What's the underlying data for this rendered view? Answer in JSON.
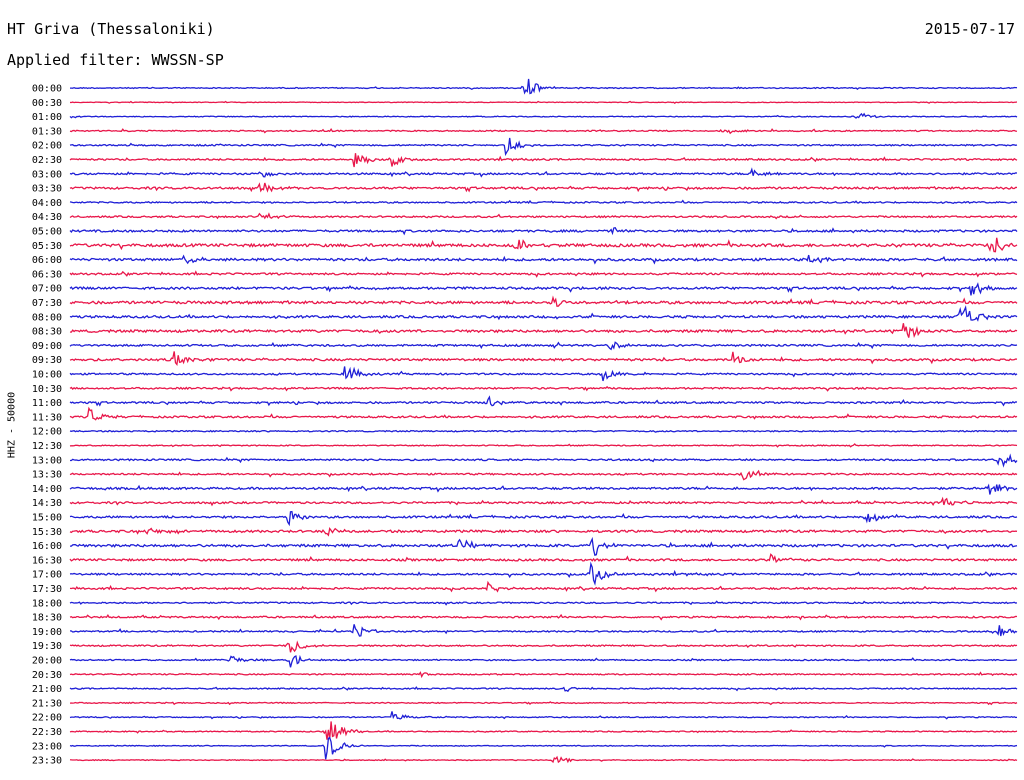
{
  "header": {
    "station": "HT Griva (Thessaloniki)",
    "date": "2015-07-17",
    "filter": "Applied filter: WWSSN-SP"
  },
  "chart_data": {
    "type": "line",
    "subtype": "helicorder",
    "ylabel": "HHZ - 50000",
    "row_interval_minutes": 30,
    "row_colors": [
      "#1f1fd6",
      "#e8174a"
    ],
    "rows": [
      "00:00",
      "00:30",
      "01:00",
      "01:30",
      "02:00",
      "02:30",
      "03:00",
      "03:30",
      "04:00",
      "04:30",
      "05:00",
      "05:30",
      "06:00",
      "06:30",
      "07:00",
      "07:30",
      "08:00",
      "08:30",
      "09:00",
      "09:30",
      "10:00",
      "10:30",
      "11:00",
      "11:30",
      "12:00",
      "12:30",
      "13:00",
      "13:30",
      "14:00",
      "14:30",
      "15:00",
      "15:30",
      "16:00",
      "16:30",
      "17:00",
      "17:30",
      "18:00",
      "18:30",
      "19:00",
      "19:30",
      "20:00",
      "20:30",
      "21:00",
      "21:30",
      "22:00",
      "22:30",
      "23:00",
      "23:30"
    ],
    "noise_levels": [
      0.5,
      0.3,
      0.4,
      0.6,
      0.7,
      0.8,
      0.9,
      1.0,
      0.7,
      0.8,
      1.0,
      1.4,
      1.2,
      0.9,
      1.1,
      1.3,
      1.1,
      1.2,
      0.9,
      1.1,
      0.8,
      0.8,
      0.9,
      0.9,
      0.6,
      0.5,
      0.8,
      0.8,
      1.0,
      0.9,
      1.0,
      1.1,
      1.2,
      1.0,
      0.9,
      0.9,
      0.7,
      0.8,
      0.7,
      0.7,
      0.6,
      0.6,
      0.6,
      0.5,
      0.5,
      0.5,
      0.4,
      0.4
    ],
    "events": [
      {
        "row": 0,
        "x": 0.48,
        "amp": 14
      },
      {
        "row": 2,
        "x": 0.83,
        "amp": 6
      },
      {
        "row": 3,
        "x": 0.69,
        "amp": 4
      },
      {
        "row": 4,
        "x": 0.46,
        "amp": 10
      },
      {
        "row": 5,
        "x": 0.3,
        "amp": 8
      },
      {
        "row": 5,
        "x": 0.34,
        "amp": 7
      },
      {
        "row": 6,
        "x": 0.72,
        "amp": 6
      },
      {
        "row": 6,
        "x": 0.2,
        "amp": 4
      },
      {
        "row": 7,
        "x": 0.2,
        "amp": 7
      },
      {
        "row": 9,
        "x": 0.2,
        "amp": 5
      },
      {
        "row": 10,
        "x": 0.57,
        "amp": 5
      },
      {
        "row": 11,
        "x": 0.47,
        "amp": 7
      },
      {
        "row": 11,
        "x": 0.97,
        "amp": 14
      },
      {
        "row": 12,
        "x": 0.12,
        "amp": 7
      },
      {
        "row": 12,
        "x": 0.78,
        "amp": 5
      },
      {
        "row": 14,
        "x": 0.95,
        "amp": 10
      },
      {
        "row": 15,
        "x": 0.51,
        "amp": 6
      },
      {
        "row": 16,
        "x": 0.94,
        "amp": 22
      },
      {
        "row": 17,
        "x": 0.88,
        "amp": 12
      },
      {
        "row": 18,
        "x": 0.57,
        "amp": 6
      },
      {
        "row": 19,
        "x": 0.11,
        "amp": 8
      },
      {
        "row": 19,
        "x": 0.7,
        "amp": 8
      },
      {
        "row": 20,
        "x": 0.29,
        "amp": 12
      },
      {
        "row": 20,
        "x": 0.56,
        "amp": 9
      },
      {
        "row": 22,
        "x": 0.44,
        "amp": 10
      },
      {
        "row": 23,
        "x": 0.02,
        "amp": 9
      },
      {
        "row": 26,
        "x": 0.98,
        "amp": 12
      },
      {
        "row": 27,
        "x": 0.71,
        "amp": 7
      },
      {
        "row": 28,
        "x": 0.97,
        "amp": 10
      },
      {
        "row": 29,
        "x": 0.92,
        "amp": 8
      },
      {
        "row": 30,
        "x": 0.23,
        "amp": 9
      },
      {
        "row": 30,
        "x": 0.84,
        "amp": 9
      },
      {
        "row": 31,
        "x": 0.08,
        "amp": 8
      },
      {
        "row": 31,
        "x": 0.27,
        "amp": 6
      },
      {
        "row": 32,
        "x": 0.41,
        "amp": 8
      },
      {
        "row": 32,
        "x": 0.55,
        "amp": 16
      },
      {
        "row": 33,
        "x": 0.74,
        "amp": 6
      },
      {
        "row": 34,
        "x": 0.55,
        "amp": 14
      },
      {
        "row": 35,
        "x": 0.44,
        "amp": 6
      },
      {
        "row": 38,
        "x": 0.3,
        "amp": 8
      },
      {
        "row": 38,
        "x": 0.98,
        "amp": 7
      },
      {
        "row": 39,
        "x": 0.23,
        "amp": 12
      },
      {
        "row": 40,
        "x": 0.23,
        "amp": 10
      },
      {
        "row": 40,
        "x": 0.17,
        "amp": 6
      },
      {
        "row": 41,
        "x": 0.37,
        "amp": 4
      },
      {
        "row": 42,
        "x": 0.52,
        "amp": 5
      },
      {
        "row": 44,
        "x": 0.34,
        "amp": 6
      },
      {
        "row": 45,
        "x": 0.27,
        "amp": 22
      },
      {
        "row": 46,
        "x": 0.27,
        "amp": 16
      },
      {
        "row": 47,
        "x": 0.51,
        "amp": 5
      }
    ]
  }
}
